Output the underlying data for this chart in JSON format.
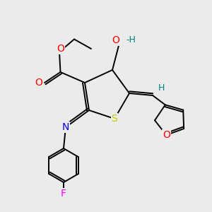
{
  "bg_color": "#ebebeb",
  "bond_color": "#000000",
  "colors": {
    "O": "#ff0000",
    "N": "#0000ff",
    "S": "#c8c800",
    "F": "#ff00ff",
    "H": "#008080",
    "C": "#000000"
  },
  "lw": 1.4,
  "double_sep": 0.09,
  "fontsize": 10
}
